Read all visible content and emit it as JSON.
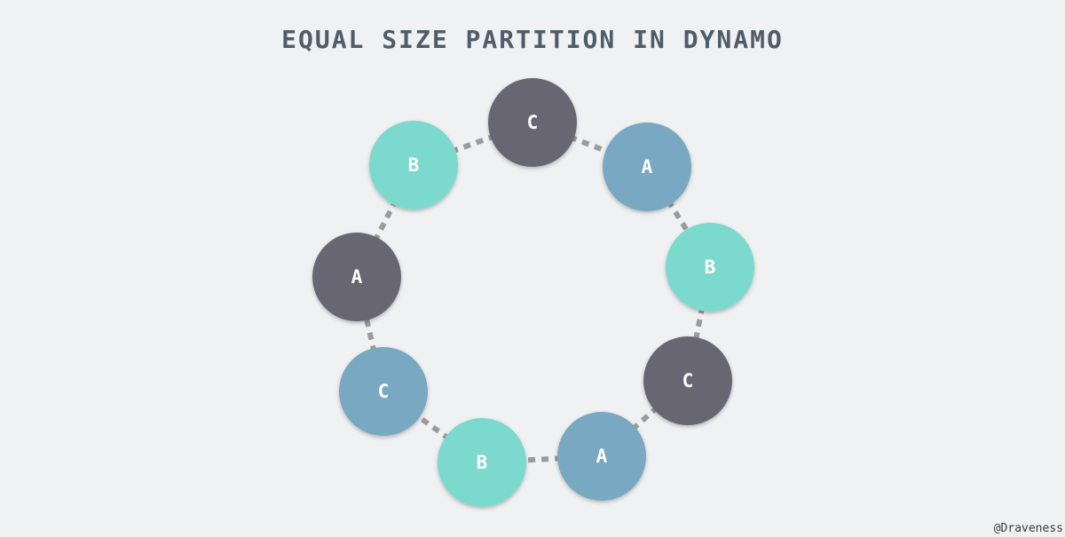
{
  "title": "EQUAL SIZE PARTITION IN DYNAMO",
  "credit": "@Draveness",
  "colors": {
    "background": "#f0f1f3",
    "dark": "#686673",
    "blue": "#79a8c2",
    "teal": "#7bd9ce",
    "connector": "#9b9b9b"
  },
  "nodes": [
    {
      "label": "C",
      "color": "dark"
    },
    {
      "label": "A",
      "color": "blue"
    },
    {
      "label": "B",
      "color": "teal"
    },
    {
      "label": "C",
      "color": "dark"
    },
    {
      "label": "A",
      "color": "blue"
    },
    {
      "label": "B",
      "color": "teal"
    },
    {
      "label": "C",
      "color": "blue"
    },
    {
      "label": "A",
      "color": "dark"
    },
    {
      "label": "B",
      "color": "teal"
    }
  ]
}
